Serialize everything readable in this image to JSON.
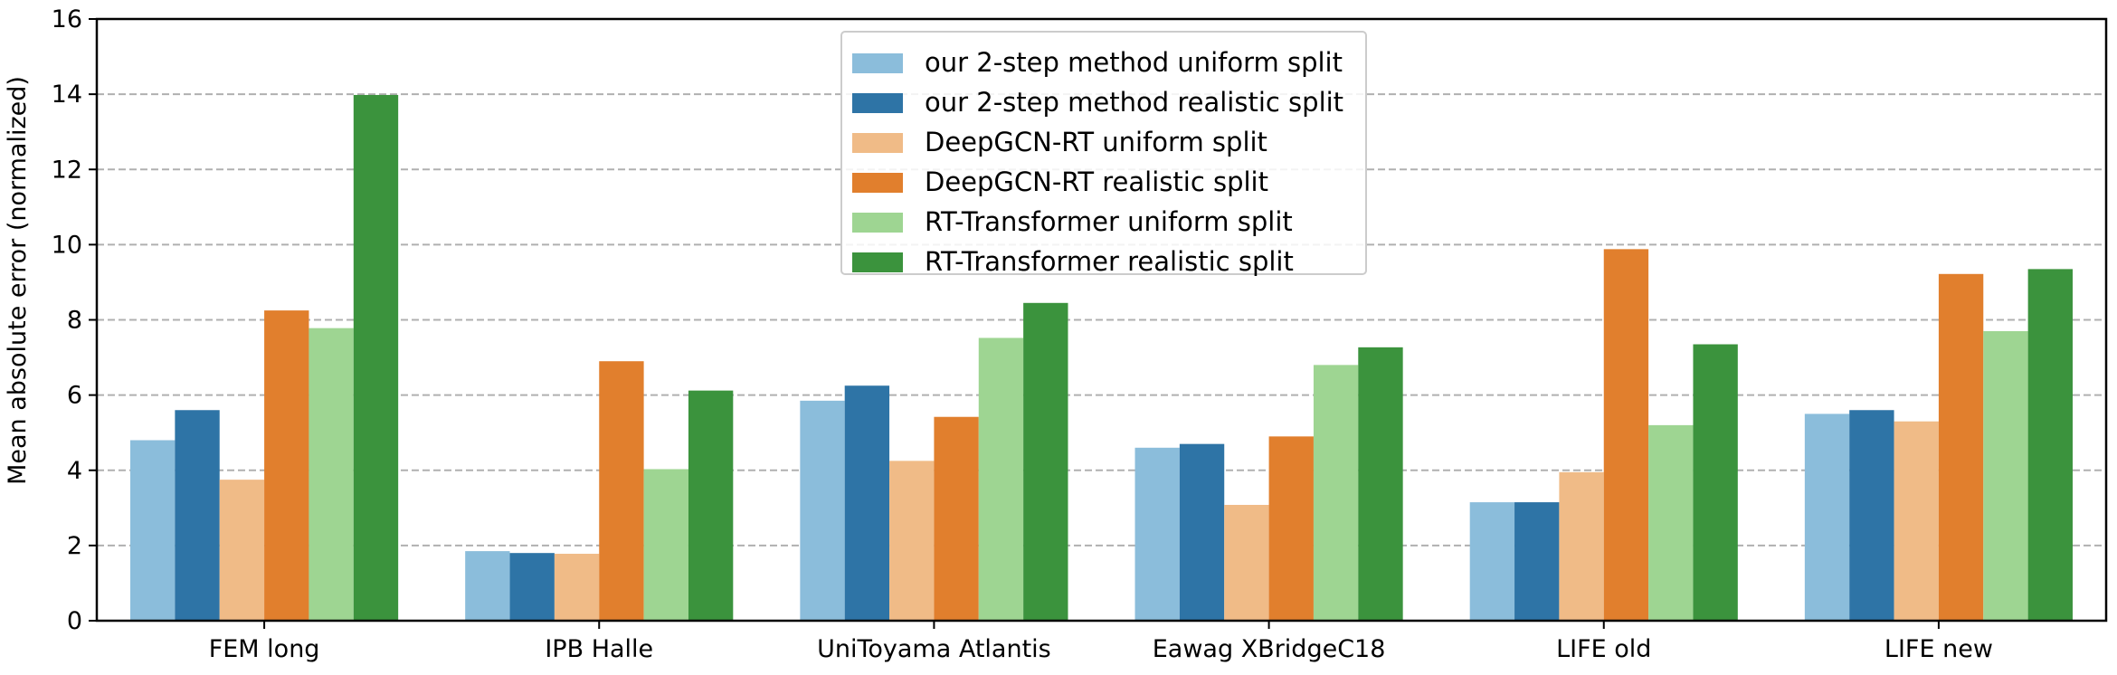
{
  "chart_data": {
    "type": "bar",
    "title": "",
    "xlabel": "",
    "ylabel": "Mean absolute error (normalized)",
    "ylim": [
      0,
      16
    ],
    "yticks": [
      0,
      2,
      4,
      6,
      8,
      10,
      12,
      14,
      16
    ],
    "grid": "y-dashed",
    "legend_position": "top-center",
    "categories": [
      "FEM long",
      "IPB Halle",
      "UniToyama Atlantis",
      "Eawag XBridgeC18",
      "LIFE old",
      "LIFE new"
    ],
    "series": [
      {
        "name": "our 2-step method uniform split",
        "color": "#8bbddb",
        "values": [
          4.8,
          1.85,
          5.85,
          4.6,
          3.15,
          5.5
        ]
      },
      {
        "name": "our 2-step method realistic split",
        "color": "#2e74a6",
        "values": [
          5.6,
          1.8,
          6.25,
          4.7,
          3.15,
          5.6
        ]
      },
      {
        "name": "DeepGCN-RT uniform split",
        "color": "#f0bb87",
        "values": [
          3.75,
          1.78,
          4.25,
          3.08,
          3.95,
          5.3
        ]
      },
      {
        "name": "DeepGCN-RT realistic split",
        "color": "#e17f2d",
        "values": [
          8.25,
          6.9,
          5.42,
          4.9,
          9.88,
          9.22
        ]
      },
      {
        "name": "RT-Transformer uniform split",
        "color": "#9ed592",
        "values": [
          7.78,
          4.03,
          7.52,
          6.8,
          5.2,
          7.7
        ]
      },
      {
        "name": "RT-Transformer realistic split",
        "color": "#3b933d",
        "values": [
          13.98,
          6.12,
          8.45,
          7.27,
          7.35,
          9.35
        ]
      }
    ]
  }
}
